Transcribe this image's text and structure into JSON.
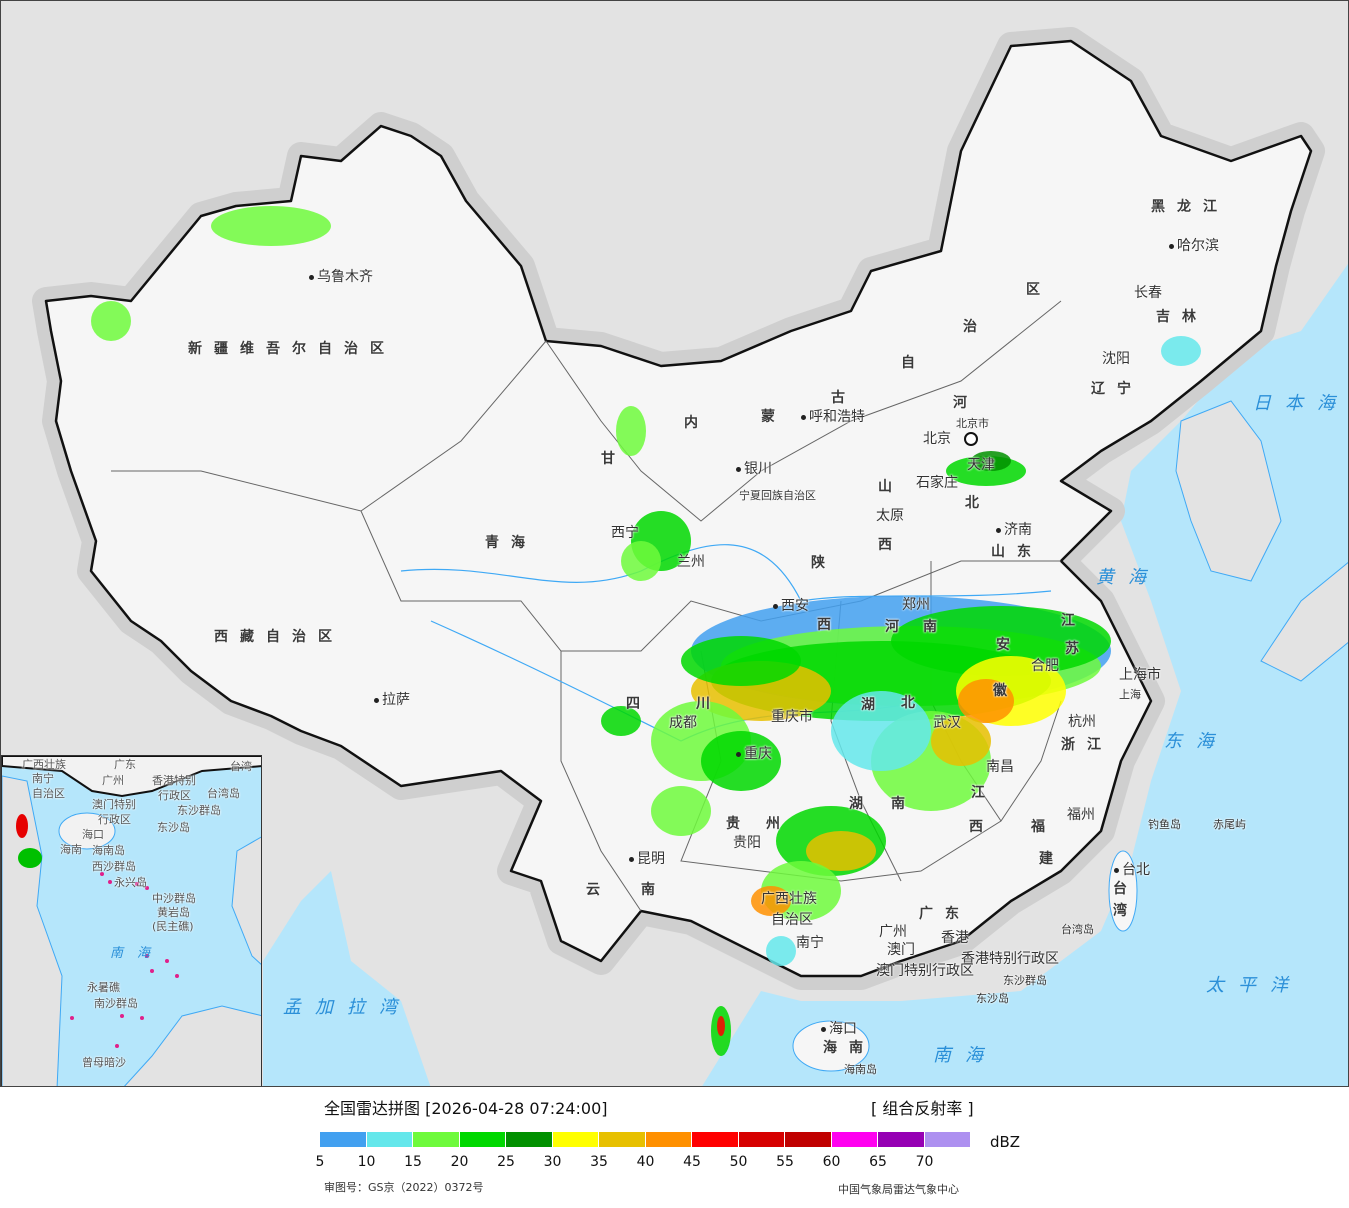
{
  "map": {
    "colors": {
      "background": "#e3e3e3",
      "sea": "#b5e6fb",
      "land": "#f6f6f6",
      "border": "#222222",
      "river": "#3fa9f5",
      "island": "#e0208a"
    },
    "labels": [
      "乌鲁木齐",
      "新疆维吾尔自治区",
      "西藏自治区",
      "拉萨",
      "青海",
      "西宁",
      "甘",
      "兰州",
      "内",
      "蒙",
      "古",
      "自",
      "治",
      "区",
      "呼和浩特",
      "银川",
      "宁夏回族自治区",
      "陕",
      "西",
      "西安",
      "山",
      "西",
      "太原",
      "石家庄",
      "河",
      "北",
      "北京",
      "北京市",
      "天津",
      "山东",
      "济南",
      "河",
      "南",
      "郑州",
      "江",
      "苏",
      "安",
      "徽",
      "合肥",
      "上海市",
      "上海",
      "杭州",
      "浙江",
      "湖",
      "北",
      "武汉",
      "重庆市",
      "重庆",
      "四",
      "川",
      "成都",
      "贵",
      "州",
      "贵阳",
      "湖",
      "南",
      "南昌",
      "江",
      "西",
      "福",
      "建",
      "福州",
      "云",
      "南",
      "昆明",
      "广西壮族",
      "自治区",
      "南宁",
      "广东",
      "广州",
      "香港",
      "澳门",
      "香港特别行政区",
      "澳门特别行政区",
      "东沙群岛",
      "东沙岛",
      "海口",
      "海南",
      "海南岛",
      "台北",
      "台",
      "湾",
      "台湾岛",
      "钓鱼岛",
      "赤尾屿",
      "黑龙江",
      "哈尔滨",
      "长春",
      "吉林",
      "沈阳",
      "辽宁",
      "日本海",
      "黄海",
      "东海",
      "太平洋",
      "南海",
      "孟加拉湾"
    ],
    "inset_labels": [
      "广西壮族",
      "自治区",
      "南宁",
      "广东",
      "广州",
      "台湾",
      "香港特别",
      "行政区",
      "澳门特别",
      "行政区",
      "台湾岛",
      "东沙群岛",
      "东沙岛",
      "海口",
      "海南",
      "海南岛",
      "西沙群岛",
      "永兴岛",
      "中沙群岛",
      "黄岩岛",
      "(民主礁)",
      "南海",
      "永暑礁",
      "南沙群岛",
      "曾母暗沙"
    ]
  },
  "legend": {
    "title": "全国雷达拼图 [2026-04-28 07:24:00]",
    "product": "[ 组合反射率 ]",
    "unit": "dBZ",
    "colors": [
      "#42a0f0",
      "#64e7eb",
      "#6efa3c",
      "#00d800",
      "#019000",
      "#ffff00",
      "#e7c000",
      "#ff9000",
      "#ff0000",
      "#d60000",
      "#c00000",
      "#ff00f0",
      "#9600b4",
      "#ad90f0"
    ],
    "ticks": [
      "5",
      "10",
      "15",
      "20",
      "25",
      "30",
      "35",
      "40",
      "45",
      "50",
      "55",
      "60",
      "65",
      "70"
    ],
    "approval": "审图号：GS京（2022）0372号",
    "org": "中国气象局雷达气象中心"
  }
}
